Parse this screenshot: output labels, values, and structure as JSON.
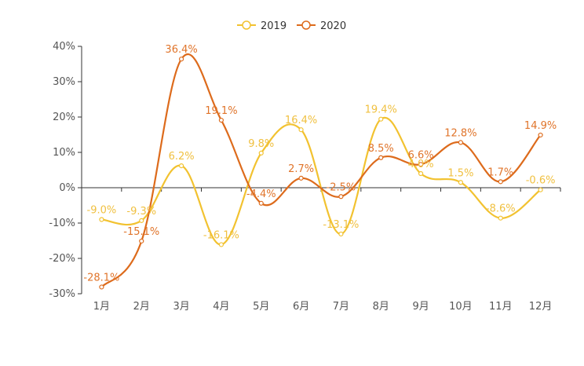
{
  "chart_data": {
    "type": "line",
    "title": "",
    "xlabel": "",
    "ylabel": "",
    "categories": [
      "1月",
      "2月",
      "3月",
      "4月",
      "5月",
      "6月",
      "7月",
      "8月",
      "9月",
      "10月",
      "11月",
      "12月"
    ],
    "ylim": [
      -30,
      40
    ],
    "yticks": [
      -30,
      -20,
      -10,
      0,
      10,
      20,
      30,
      40
    ],
    "ytick_labels": [
      "-30%",
      "-20%",
      "-10%",
      "0%",
      "10%",
      "20%",
      "30%",
      "40%"
    ],
    "grid": false,
    "legend_position": "top-center",
    "series": [
      {
        "name": "2019",
        "color": "#f2c230",
        "label_color": "#f0c040",
        "values": [
          -9.0,
          -9.3,
          6.2,
          -16.1,
          9.8,
          16.4,
          -13.1,
          19.4,
          4.0,
          1.5,
          -8.6,
          -0.6
        ],
        "labels": [
          "-9.0%",
          "-9.3%",
          "6.2%",
          "-16.1%",
          "9.8%",
          "16.4%",
          "-13.1%",
          "19.4%",
          "4.0%",
          "1.5%",
          "-8.6%",
          "-0.6%"
        ]
      },
      {
        "name": "2020",
        "color": "#dd6b1c",
        "label_color": "#e0742a",
        "values": [
          -28.1,
          -15.1,
          36.4,
          19.1,
          -4.4,
          2.7,
          -2.5,
          8.5,
          6.6,
          12.8,
          1.7,
          14.9
        ],
        "labels": [
          "-28.1%",
          "-15.1%",
          "36.4%",
          "19.1%",
          "-4.4%",
          "2.7%",
          "-2.5%",
          "8.5%",
          "6.6%",
          "12.8%",
          "1.7%",
          "14.9%"
        ]
      }
    ]
  }
}
